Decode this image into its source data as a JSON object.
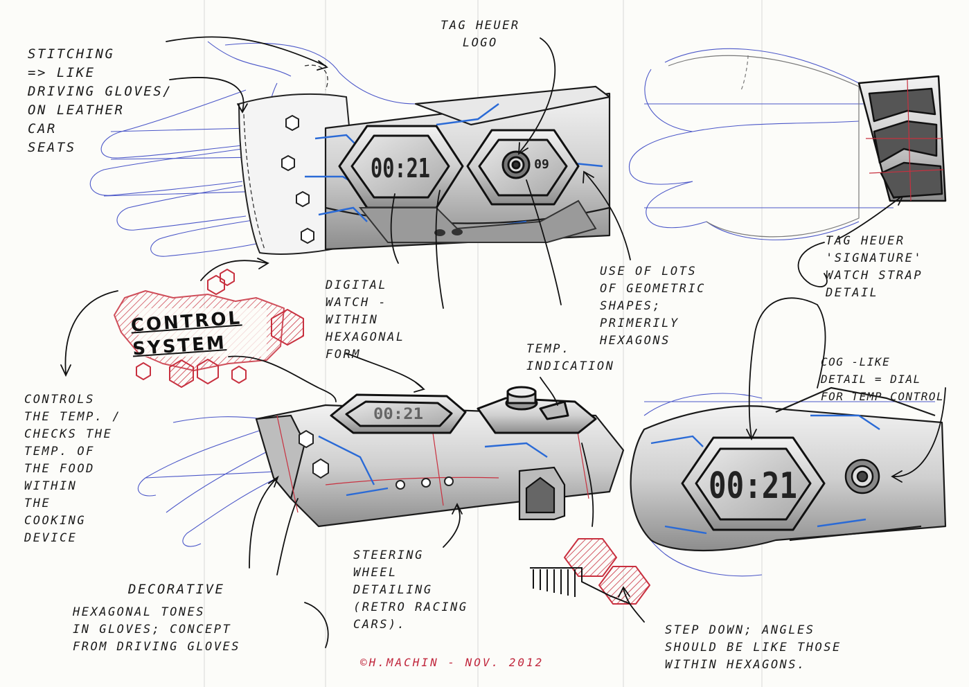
{
  "sheet": {
    "title": "CONTROL\nSYSTEM",
    "signature": "©H.MACHIN - NOV. 2012"
  },
  "watch_display": {
    "time": "00:21",
    "temp": "09"
  },
  "annotations": {
    "stitching": "STITCHING\n=> LIKE\nDRIVING GLOVES/\nON LEATHER\nCAR\nSEATS",
    "tag_logo": "TAG HEUER\nLOGO",
    "tag_signature": "TAG HEUER\n'SIGNATURE'\nWATCH STRAP\nDETAIL",
    "geometric": "USE OF LOTS\nOF GEOMETRIC\nSHAPES;\nPRIMERILY\nHEXAGONS",
    "digital": "DIGITAL\nWATCH -\nWITHIN\nHEXAGONAL\nFORM",
    "temp_indication": "TEMP.\nINDICATION",
    "cog": "COG -LIKE\nDETAIL = DIAL\nFOR TEMP CONTROL",
    "controls": "CONTROLS\nTHE TEMP. /\nCHECKS THE\nTEMP. OF\nTHE FOOD\nWITHIN\nTHE\nCOOKING\nDEVICE",
    "steering": "STEERING\nWHEEL\nDETAILING\n(RETRO RACING\nCARS).",
    "decorative_heading": "DECORATIVE",
    "decorative_body": "HEXAGONAL TONES\nIN GLOVES; CONCEPT\nFROM DRIVING GLOVES",
    "step_down": "STEP DOWN; ANGLES\nSHOULD BE LIKE THOSE\nWITHIN HEXAGONS."
  }
}
